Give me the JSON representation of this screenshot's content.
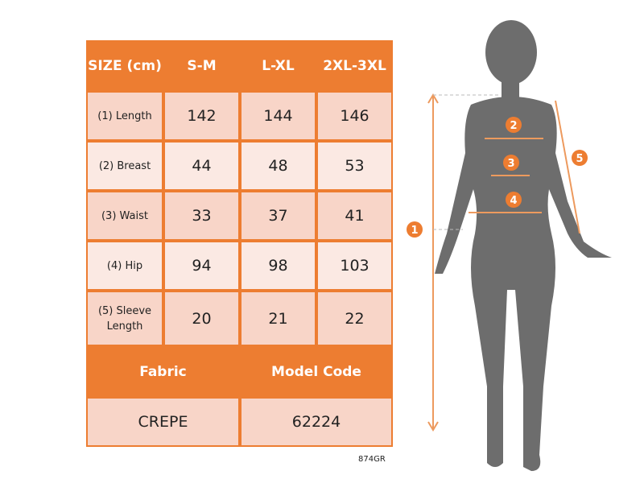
{
  "table": {
    "header": [
      "SIZE (cm)",
      "S-M",
      "L-XL",
      "2XL-3XL"
    ],
    "rows": [
      {
        "label": "(1) Length",
        "values": [
          "142",
          "144",
          "146"
        ]
      },
      {
        "label": "(2) Breast",
        "values": [
          "44",
          "48",
          "53"
        ]
      },
      {
        "label": "(3) Waist",
        "values": [
          "33",
          "37",
          "41"
        ]
      },
      {
        "label": "(4) Hip",
        "values": [
          "94",
          "98",
          "103"
        ]
      },
      {
        "label": "(5) Sleeve Length",
        "values": [
          "20",
          "21",
          "22"
        ]
      }
    ],
    "footer_header": [
      "Fabric",
      "Model Code"
    ],
    "footer_values": [
      "CREPE",
      "62224"
    ]
  },
  "image_code": "874GR",
  "figure": {
    "markers": [
      "1",
      "2",
      "3",
      "4",
      "5"
    ]
  },
  "colors": {
    "accent": "#ed7d31",
    "row_dark": "#f8d5c8",
    "row_light": "#fbe9e3",
    "silhouette": "#6d6d6d"
  }
}
